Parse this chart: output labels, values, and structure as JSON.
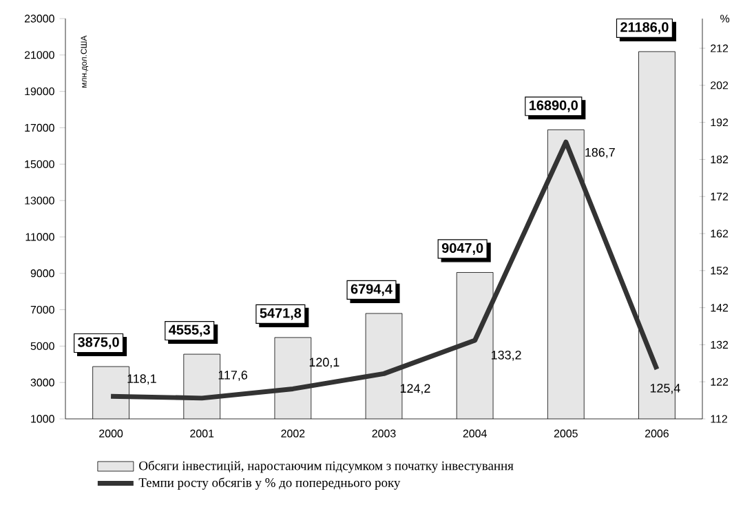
{
  "chart_data": {
    "type": "bar",
    "ylabel": "млн.дол.США",
    "y2label": "%",
    "categories": [
      "2000",
      "2001",
      "2002",
      "2003",
      "2004",
      "2005",
      "2006"
    ],
    "series": [
      {
        "name": "Обсяги інвестицій, наростаючим підсумком з початку інвестування",
        "color": "#e6e6e6",
        "values": [
          3875.0,
          4555.3,
          5471.8,
          6794.4,
          9047.0,
          16890.0,
          21186.0
        ],
        "value_labels": [
          "3875,0",
          "4555,3",
          "5471,8",
          "6794,4",
          "9047,0",
          "16890,0",
          "21186,0"
        ]
      },
      {
        "name": "Темпи росту обсягів у % до попереднього року",
        "type": "line",
        "axis": "y2",
        "color": "#333333",
        "values": [
          118.1,
          117.6,
          120.1,
          124.2,
          133.2,
          186.7,
          125.4
        ],
        "value_labels": [
          "118,1",
          "117,6",
          "120,1",
          "124,2",
          "133,2",
          "186,7",
          "125,4"
        ]
      }
    ],
    "ylim": [
      1000,
      23000
    ],
    "yticks": [
      1000,
      3000,
      5000,
      7000,
      9000,
      11000,
      13000,
      15000,
      17000,
      19000,
      21000,
      23000
    ],
    "y2lim": [
      112,
      220
    ],
    "y2ticks": [
      112,
      122,
      132,
      142,
      152,
      162,
      172,
      182,
      192,
      202,
      212
    ],
    "legend": "bottom",
    "marker": "none",
    "line_style": "solid"
  }
}
